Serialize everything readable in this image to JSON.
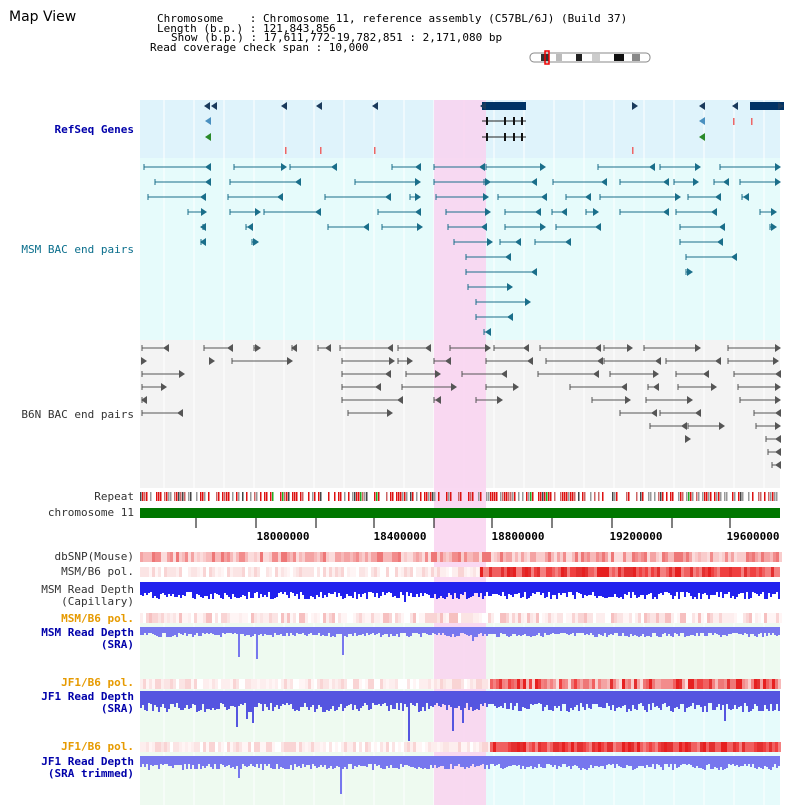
{
  "header": {
    "title": "Map View",
    "info": [
      "Chromosome    : Chromosome 11, reference assembly (C57BL/6J) (Build 37)",
      "Length (b.p.) : 121,843,856",
      "Show (b.p.) : 17,611,772-19,782,851 : 2,171,080 bp",
      "Read coverage check span : 10,000"
    ]
  },
  "tracks": {
    "refseq": "RefSeq Genes",
    "msm_bac": "MSM BAC end pairs",
    "b6n_bac": "B6N BAC end pairs",
    "repeat": "Repeat",
    "chromosome": "chromosome 11",
    "dbsnp": "dbSNP(Mouse)",
    "msm_b6_pol_1": "MSM/B6 pol.",
    "msm_depth_cap_1": "MSM Read Depth",
    "msm_depth_cap_2": "(Capillary)",
    "msm_b6_pol_2": "MSM/B6 pol.",
    "msm_depth_sra_1": "MSM Read Depth",
    "msm_depth_sra_2": "(SRA)",
    "jf1_b6_pol_1": "JF1/B6 pol.",
    "jf1_depth_sra_1": "JF1 Read Depth",
    "jf1_depth_sra_2": "(SRA)",
    "jf1_b6_pol_2": "JF1/B6 pol.",
    "jf1_depth_trim_1": "JF1 Read Depth",
    "jf1_depth_trim_2": "(SRA trimmed)"
  },
  "ruler": {
    "ticks": [
      "18000000",
      "18400000",
      "18800000",
      "19200000",
      "19600000"
    ]
  },
  "colors": {
    "refseq_bg": "#dff3fb",
    "bac_bg": "#e6fbfb",
    "b6n_bg": "#f3f3f3",
    "highlight": "#f9d2f0",
    "chromosome_bar": "#007700",
    "depth_blue": "#3333ff",
    "pol_red": "#ee3333"
  }
}
